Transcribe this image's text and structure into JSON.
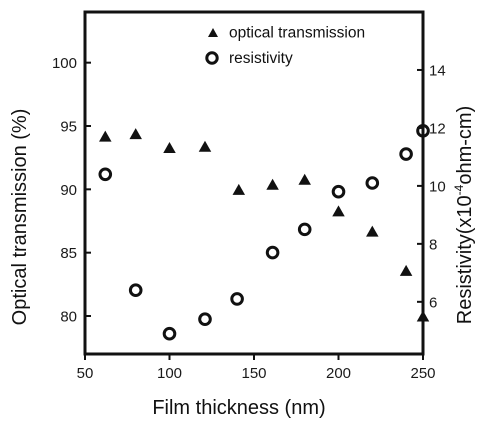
{
  "chart_data": {
    "type": "scatter",
    "xlabel": "Film thickness (nm)",
    "ylabel": "Optical transmission (%)",
    "y2label": "Resistivity(x10⁻ohm-cm)",
    "y2label_main": "Resistivity(x10",
    "y2label_sup": "-4",
    "y2label_tail": "ohm-cm)",
    "xlim": [
      50,
      250
    ],
    "ylim": [
      77,
      104
    ],
    "y2lim": [
      4.2,
      16.0
    ],
    "xticks": [
      50,
      100,
      150,
      200,
      250
    ],
    "yticks": [
      80,
      85,
      90,
      95,
      100
    ],
    "y2ticks": [
      6,
      8,
      10,
      12,
      14
    ],
    "grid": false,
    "legend_position": "top-right",
    "series": [
      {
        "name": "optical transmission",
        "axis": "left",
        "marker": "filled-triangle",
        "x": [
          62,
          80,
          100,
          121,
          141,
          161,
          180,
          200,
          220,
          240,
          250
        ],
        "y": [
          94.2,
          94.4,
          93.3,
          93.4,
          90.0,
          90.4,
          90.8,
          88.3,
          86.7,
          83.6,
          80.0
        ]
      },
      {
        "name": "resistivity",
        "axis": "right",
        "marker": "open-circle",
        "x": [
          62,
          80,
          100,
          121,
          140,
          161,
          180,
          200,
          220,
          240,
          250
        ],
        "y": [
          10.4,
          6.4,
          4.9,
          5.4,
          6.1,
          7.7,
          8.5,
          9.8,
          10.1,
          11.1,
          11.9
        ]
      }
    ]
  },
  "colors": {
    "ink": "#111111",
    "background": "#ffffff"
  }
}
